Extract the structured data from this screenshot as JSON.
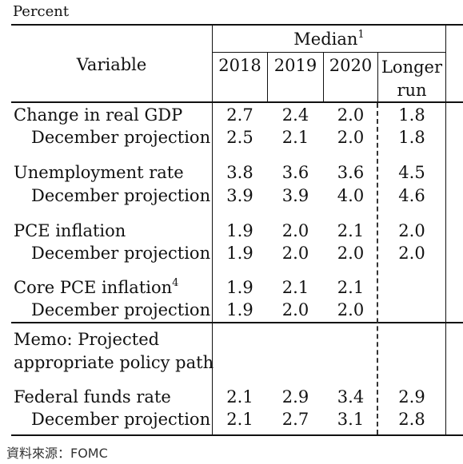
{
  "units_label": "Percent",
  "header": {
    "variable": "Variable",
    "median": "Median",
    "median_note": "1",
    "years": [
      "2018",
      "2019",
      "2020"
    ],
    "longer_run_line1": "Longer",
    "longer_run_line2": "run"
  },
  "rows": [
    {
      "label": "Change in real GDP",
      "note": "",
      "values": [
        "2.7",
        "2.4",
        "2.0",
        "1.8"
      ]
    },
    {
      "label": "December projection",
      "note": "",
      "values": [
        "2.5",
        "2.1",
        "2.0",
        "1.8"
      ]
    },
    {
      "label": "Unemployment rate",
      "note": "",
      "values": [
        "3.8",
        "3.6",
        "3.6",
        "4.5"
      ]
    },
    {
      "label": "December projection",
      "note": "",
      "values": [
        "3.9",
        "3.9",
        "4.0",
        "4.6"
      ]
    },
    {
      "label": "PCE inflation",
      "note": "",
      "values": [
        "1.9",
        "2.0",
        "2.1",
        "2.0"
      ]
    },
    {
      "label": "December projection",
      "note": "",
      "values": [
        "1.9",
        "2.0",
        "2.0",
        "2.0"
      ]
    },
    {
      "label": "Core PCE inflation",
      "note": "4",
      "values": [
        "1.9",
        "2.1",
        "2.1",
        ""
      ]
    },
    {
      "label": "December projection",
      "note": "",
      "values": [
        "1.9",
        "2.0",
        "2.0",
        ""
      ]
    }
  ],
  "memo": {
    "line1": "Memo: Projected",
    "line2": "appropriate policy path"
  },
  "memo_rows": [
    {
      "label": "Federal funds rate",
      "values": [
        "2.1",
        "2.9",
        "3.4",
        "2.9"
      ]
    },
    {
      "label": "December projection",
      "values": [
        "2.1",
        "2.7",
        "3.1",
        "2.8"
      ]
    }
  ],
  "source": "資料來源：FOMC"
}
